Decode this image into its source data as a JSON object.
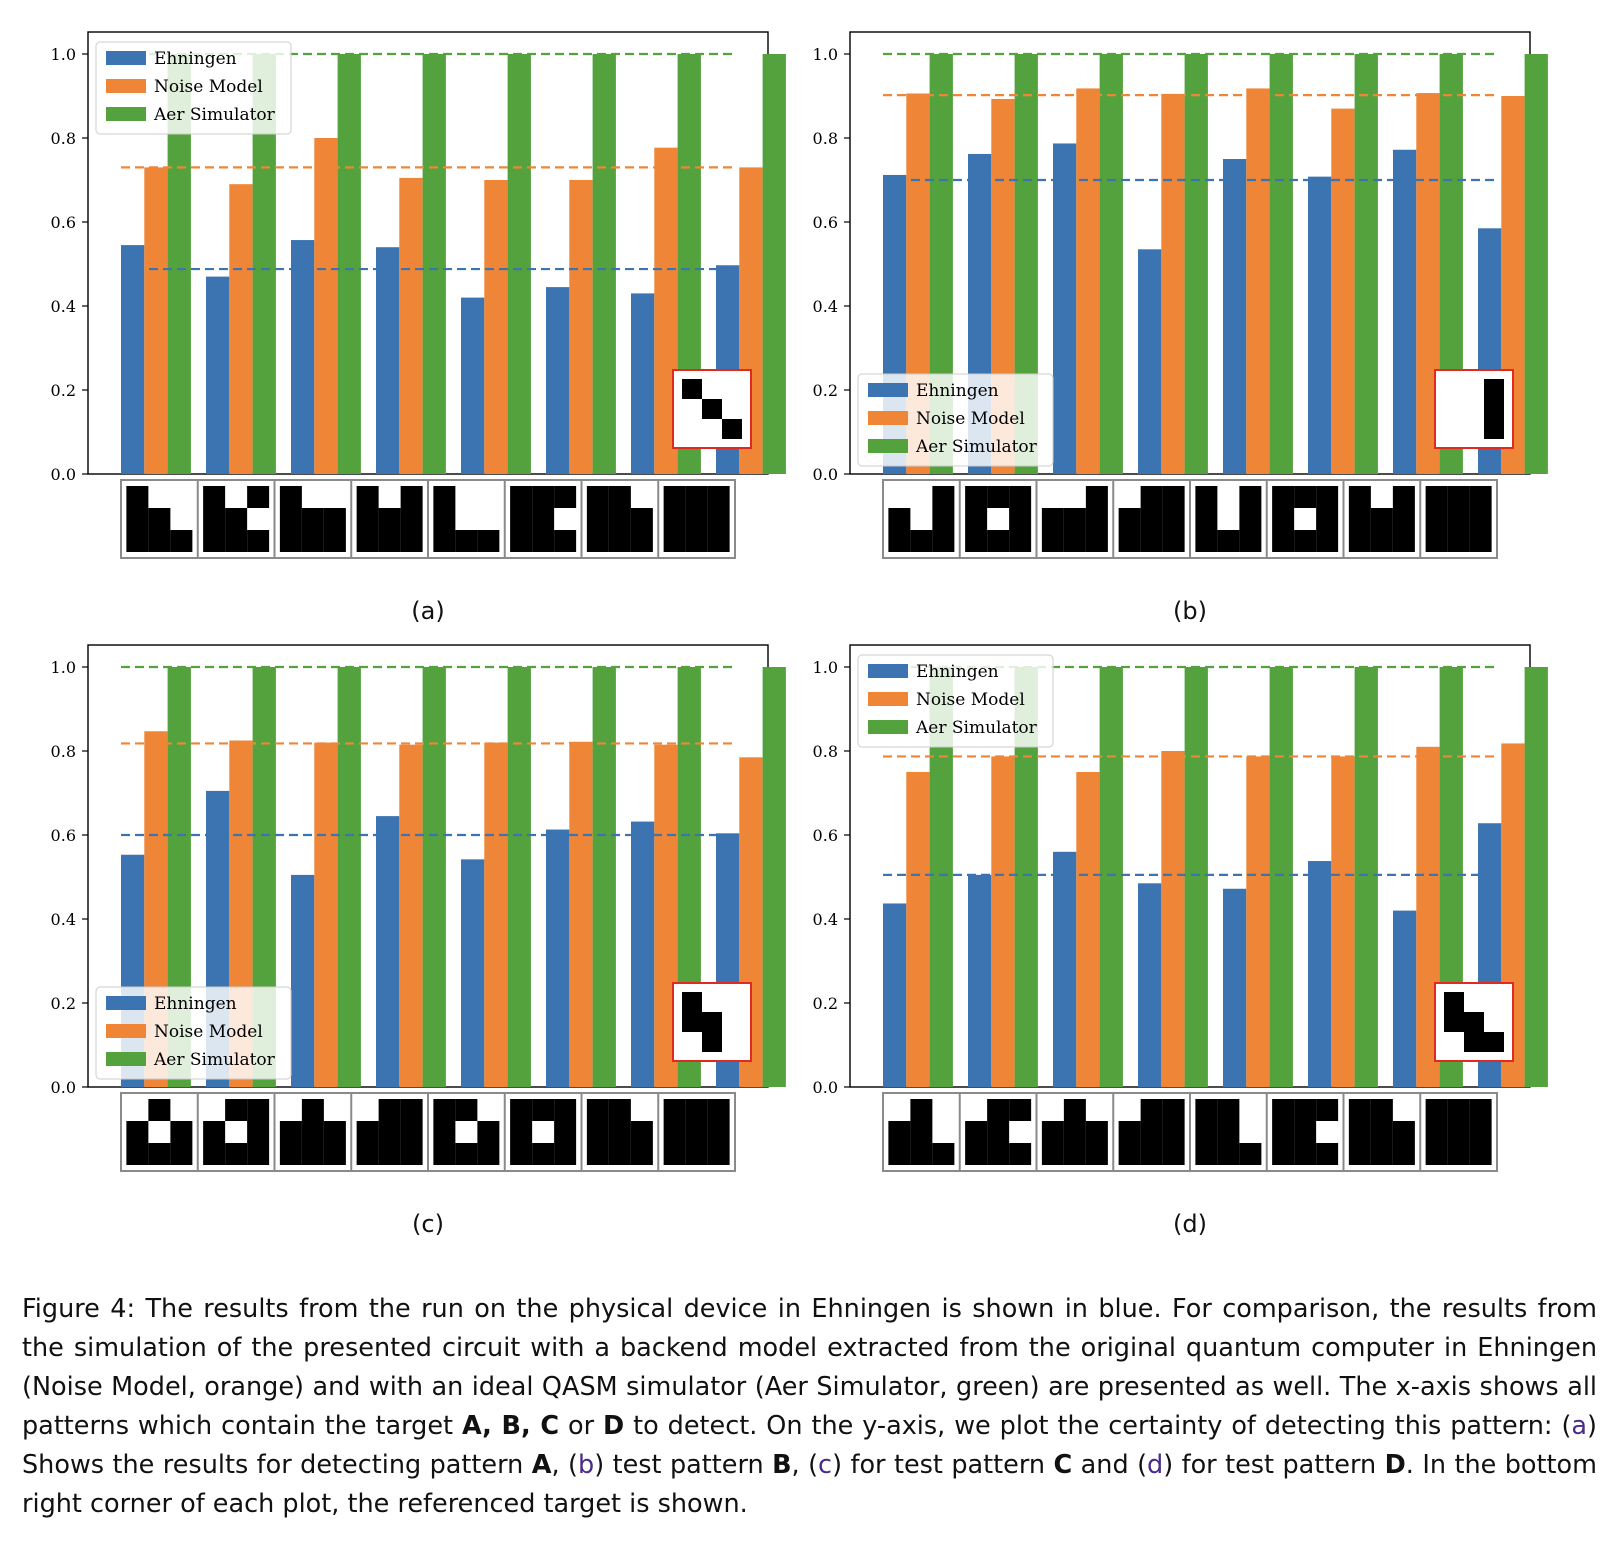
{
  "colors": {
    "ehningen": "#3b74b0",
    "noise": "#ef8537",
    "aer": "#54a23d",
    "inset_border": "#e0291f",
    "pattern_border": "#8a8a8a"
  },
  "chart_data": [
    {
      "type": "bar",
      "subfigure": "(a)",
      "target": [
        [
          1,
          0,
          0
        ],
        [
          0,
          1,
          0
        ],
        [
          0,
          0,
          1
        ]
      ],
      "ylim": [
        0,
        1.0
      ],
      "yticks": [
        "0.0",
        "0.2",
        "0.4",
        "0.6",
        "0.8",
        "1.0"
      ],
      "legend_position": "top-left",
      "series": [
        {
          "name": "Ehningen",
          "values": [
            0.545,
            0.47,
            0.557,
            0.54,
            0.42,
            0.445,
            0.43,
            0.497
          ]
        },
        {
          "name": "Noise Model",
          "values": [
            0.73,
            0.69,
            0.8,
            0.705,
            0.7,
            0.7,
            0.777,
            0.73
          ]
        },
        {
          "name": "Aer Simulator",
          "values": [
            1.0,
            1.0,
            1.0,
            1.0,
            1.0,
            1.0,
            1.0,
            1.0
          ]
        }
      ],
      "means": [
        0.488,
        0.73,
        1.0
      ],
      "patterns": [
        [
          [
            1,
            0,
            0
          ],
          [
            1,
            1,
            0
          ],
          [
            1,
            1,
            1
          ]
        ],
        [
          [
            1,
            0,
            1
          ],
          [
            1,
            1,
            0
          ],
          [
            1,
            1,
            1
          ]
        ],
        [
          [
            1,
            0,
            0
          ],
          [
            1,
            1,
            1
          ],
          [
            1,
            1,
            1
          ]
        ],
        [
          [
            1,
            0,
            1
          ],
          [
            1,
            1,
            1
          ],
          [
            1,
            1,
            1
          ]
        ],
        [
          [
            1,
            0,
            0
          ],
          [
            1,
            0,
            0
          ],
          [
            1,
            1,
            1
          ]
        ],
        [
          [
            1,
            1,
            1
          ],
          [
            1,
            1,
            0
          ],
          [
            1,
            1,
            1
          ]
        ],
        [
          [
            1,
            1,
            0
          ],
          [
            1,
            1,
            1
          ],
          [
            1,
            1,
            1
          ]
        ],
        [
          [
            1,
            1,
            1
          ],
          [
            1,
            1,
            1
          ],
          [
            1,
            1,
            1
          ]
        ]
      ]
    },
    {
      "type": "bar",
      "subfigure": "(b)",
      "target": [
        [
          0,
          0,
          1
        ],
        [
          0,
          0,
          1
        ],
        [
          0,
          0,
          1
        ]
      ],
      "ylim": [
        0,
        1.0
      ],
      "yticks": [
        "0.0",
        "0.2",
        "0.4",
        "0.6",
        "0.8",
        "1.0"
      ],
      "legend_position": "lower-left",
      "series": [
        {
          "name": "Ehningen",
          "values": [
            0.712,
            0.762,
            0.787,
            0.535,
            0.75,
            0.708,
            0.772,
            0.585
          ]
        },
        {
          "name": "Noise Model",
          "values": [
            0.906,
            0.893,
            0.918,
            0.905,
            0.918,
            0.87,
            0.907,
            0.9
          ]
        },
        {
          "name": "Aer Simulator",
          "values": [
            1.0,
            1.0,
            1.0,
            1.0,
            1.0,
            1.0,
            1.0,
            1.0
          ]
        }
      ],
      "means": [
        0.7,
        0.902,
        1.0
      ],
      "patterns": [
        [
          [
            0,
            0,
            1
          ],
          [
            1,
            0,
            1
          ],
          [
            1,
            1,
            1
          ]
        ],
        [
          [
            1,
            1,
            1
          ],
          [
            1,
            0,
            1
          ],
          [
            1,
            1,
            1
          ]
        ],
        [
          [
            0,
            0,
            1
          ],
          [
            1,
            1,
            1
          ],
          [
            1,
            1,
            1
          ]
        ],
        [
          [
            0,
            1,
            1
          ],
          [
            1,
            1,
            1
          ],
          [
            1,
            1,
            1
          ]
        ],
        [
          [
            1,
            0,
            1
          ],
          [
            1,
            0,
            1
          ],
          [
            1,
            1,
            1
          ]
        ],
        [
          [
            1,
            1,
            1
          ],
          [
            1,
            0,
            1
          ],
          [
            1,
            1,
            1
          ]
        ],
        [
          [
            1,
            0,
            1
          ],
          [
            1,
            1,
            1
          ],
          [
            1,
            1,
            1
          ]
        ],
        [
          [
            1,
            1,
            1
          ],
          [
            1,
            1,
            1
          ],
          [
            1,
            1,
            1
          ]
        ]
      ]
    },
    {
      "type": "bar",
      "subfigure": "(c)",
      "target": [
        [
          1,
          0,
          0
        ],
        [
          1,
          1,
          0
        ],
        [
          0,
          1,
          0
        ]
      ],
      "ylim": [
        0,
        1.0
      ],
      "yticks": [
        "0.0",
        "0.2",
        "0.4",
        "0.6",
        "0.8",
        "1.0"
      ],
      "legend_position": "lower-left",
      "series": [
        {
          "name": "Ehningen",
          "values": [
            0.553,
            0.705,
            0.505,
            0.645,
            0.542,
            0.613,
            0.632,
            0.604
          ]
        },
        {
          "name": "Noise Model",
          "values": [
            0.847,
            0.825,
            0.82,
            0.815,
            0.82,
            0.822,
            0.815,
            0.785
          ]
        },
        {
          "name": "Aer Simulator",
          "values": [
            1.0,
            1.0,
            1.0,
            1.0,
            1.0,
            1.0,
            1.0,
            1.0
          ]
        }
      ],
      "means": [
        0.6,
        0.818,
        1.0
      ],
      "patterns": [
        [
          [
            0,
            1,
            0
          ],
          [
            1,
            0,
            1
          ],
          [
            1,
            1,
            1
          ]
        ],
        [
          [
            0,
            1,
            1
          ],
          [
            1,
            0,
            1
          ],
          [
            1,
            1,
            1
          ]
        ],
        [
          [
            0,
            1,
            0
          ],
          [
            1,
            1,
            1
          ],
          [
            1,
            1,
            1
          ]
        ],
        [
          [
            0,
            1,
            1
          ],
          [
            1,
            1,
            1
          ],
          [
            1,
            1,
            1
          ]
        ],
        [
          [
            1,
            1,
            0
          ],
          [
            1,
            0,
            1
          ],
          [
            1,
            1,
            1
          ]
        ],
        [
          [
            1,
            1,
            1
          ],
          [
            1,
            0,
            1
          ],
          [
            1,
            1,
            1
          ]
        ],
        [
          [
            1,
            1,
            0
          ],
          [
            1,
            1,
            1
          ],
          [
            1,
            1,
            1
          ]
        ],
        [
          [
            1,
            1,
            1
          ],
          [
            1,
            1,
            1
          ],
          [
            1,
            1,
            1
          ]
        ]
      ]
    },
    {
      "type": "bar",
      "subfigure": "(d)",
      "target": [
        [
          1,
          0,
          0
        ],
        [
          1,
          1,
          0
        ],
        [
          0,
          1,
          1
        ]
      ],
      "ylim": [
        0,
        1.0
      ],
      "yticks": [
        "0.0",
        "0.2",
        "0.4",
        "0.6",
        "0.8",
        "1.0"
      ],
      "legend_position": "top-left",
      "series": [
        {
          "name": "Ehningen",
          "values": [
            0.437,
            0.505,
            0.56,
            0.485,
            0.472,
            0.538,
            0.42,
            0.628
          ]
        },
        {
          "name": "Noise Model",
          "values": [
            0.75,
            0.787,
            0.75,
            0.8,
            0.787,
            0.787,
            0.81,
            0.818
          ]
        },
        {
          "name": "Aer Simulator",
          "values": [
            1.0,
            1.0,
            1.0,
            1.0,
            1.0,
            1.0,
            1.0,
            1.0
          ]
        }
      ],
      "means": [
        0.505,
        0.787,
        1.0
      ],
      "patterns": [
        [
          [
            0,
            1,
            0
          ],
          [
            1,
            1,
            0
          ],
          [
            1,
            1,
            1
          ]
        ],
        [
          [
            0,
            1,
            1
          ],
          [
            1,
            1,
            0
          ],
          [
            1,
            1,
            1
          ]
        ],
        [
          [
            0,
            1,
            0
          ],
          [
            1,
            1,
            1
          ],
          [
            1,
            1,
            1
          ]
        ],
        [
          [
            0,
            1,
            1
          ],
          [
            1,
            1,
            1
          ],
          [
            1,
            1,
            1
          ]
        ],
        [
          [
            1,
            1,
            0
          ],
          [
            1,
            1,
            0
          ],
          [
            1,
            1,
            1
          ]
        ],
        [
          [
            1,
            1,
            1
          ],
          [
            1,
            1,
            0
          ],
          [
            1,
            1,
            1
          ]
        ],
        [
          [
            1,
            1,
            0
          ],
          [
            1,
            1,
            1
          ],
          [
            1,
            1,
            1
          ]
        ],
        [
          [
            1,
            1,
            1
          ],
          [
            1,
            1,
            1
          ],
          [
            1,
            1,
            1
          ]
        ]
      ]
    }
  ],
  "legend": {
    "items": [
      "Ehningen",
      "Noise Model",
      "Aer Simulator"
    ]
  },
  "subfigure_labels": [
    "(a)",
    "(b)",
    "(c)",
    "(d)"
  ],
  "caption": {
    "t1": "Figure 4: The results from the run on the physical device in Ehningen is shown in blue. For comparison, the results from the simulation of the presented circuit with a backend model extracted from the original quantum computer in Ehningen (Noise Model, orange) and with an ideal QASM simulator (Aer Simulator, green) are presented as well. The x-axis shows all patterns which contain the target ",
    "b1": "A, B, C",
    "t2": " or ",
    "b2": "D",
    "t3": " to detect. On the y-axis, we plot the certainty of detecting this pattern: (",
    "r1": "a",
    "t4": ") Shows the results for detecting pattern ",
    "b3": "A",
    "t5": ", (",
    "r2": "b",
    "t6": ") test pattern ",
    "b4": "B",
    "t7": ", (",
    "r3": "c",
    "t8": ") for test pattern ",
    "b5": "C",
    "t9": " and (",
    "r4": "d",
    "t10": ") for test pattern ",
    "b6": "D",
    "t11": ". In the bottom right corner of each plot, the referenced target is shown."
  }
}
